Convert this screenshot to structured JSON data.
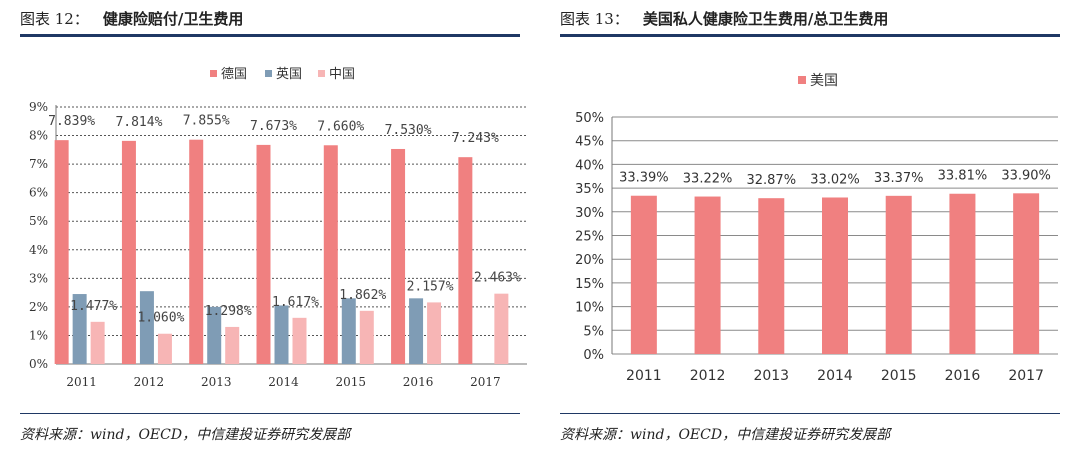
{
  "colors": {
    "germany": "#f08080",
    "uk": "#7f9cb5",
    "china": "#f7b5b5",
    "usa": "#f08080",
    "rule": "#1f3864",
    "grid": "#555555"
  },
  "left": {
    "fig_label": "图表 12：",
    "fig_title": "健康险赔付/卫生费用",
    "source": "资料来源：wind，OECD，中信建投证券研究发展部"
  },
  "right": {
    "fig_label": "图表 13：",
    "fig_title": "美国私人健康险卫生费用/总卫生费用",
    "source": "资料来源：wind，OECD，中信建投证券研究发展部"
  },
  "chart_data": [
    {
      "type": "bar",
      "categories": [
        "2011",
        "2012",
        "2013",
        "2014",
        "2015",
        "2016",
        "2017"
      ],
      "series": [
        {
          "name": "德国",
          "values": [
            7.839,
            7.814,
            7.855,
            7.673,
            7.66,
            7.53,
            7.243
          ],
          "labels": [
            "7.839%",
            "7.814%",
            "7.855%",
            "7.673%",
            "7.660%",
            "7.530%",
            "7.243%"
          ]
        },
        {
          "name": "英国",
          "values": [
            2.45,
            2.55,
            2.0,
            2.05,
            2.3,
            2.3,
            null
          ],
          "labels": [
            "",
            "",
            "",
            "",
            "",
            "",
            ""
          ]
        },
        {
          "name": "中国",
          "values": [
            1.477,
            1.06,
            1.298,
            1.617,
            1.862,
            2.157,
            2.463
          ],
          "labels": [
            "1.477%",
            "1.060%",
            "1.298%",
            "1.617%",
            "1.862%",
            "2.157%",
            "2.463%"
          ]
        }
      ],
      "yticks": [
        "0%",
        "1%",
        "2%",
        "3%",
        "4%",
        "5%",
        "6%",
        "7%",
        "8%",
        "9%"
      ],
      "ylim": [
        0,
        9
      ],
      "title": "",
      "xlabel": "",
      "ylabel": "",
      "legend_position": "top-center"
    },
    {
      "type": "bar",
      "categories": [
        "2011",
        "2012",
        "2013",
        "2014",
        "2015",
        "2016",
        "2017"
      ],
      "series": [
        {
          "name": "美国",
          "values": [
            33.39,
            33.22,
            32.87,
            33.02,
            33.37,
            33.81,
            33.9
          ],
          "labels": [
            "33.39%",
            "33.22%",
            "32.87%",
            "33.02%",
            "33.37%",
            "33.81%",
            "33.90%"
          ]
        }
      ],
      "yticks": [
        "0%",
        "5%",
        "10%",
        "15%",
        "20%",
        "25%",
        "30%",
        "35%",
        "40%",
        "45%",
        "50%"
      ],
      "ylim": [
        0,
        50
      ],
      "title": "",
      "xlabel": "",
      "ylabel": "",
      "legend_position": "top-left"
    }
  ]
}
